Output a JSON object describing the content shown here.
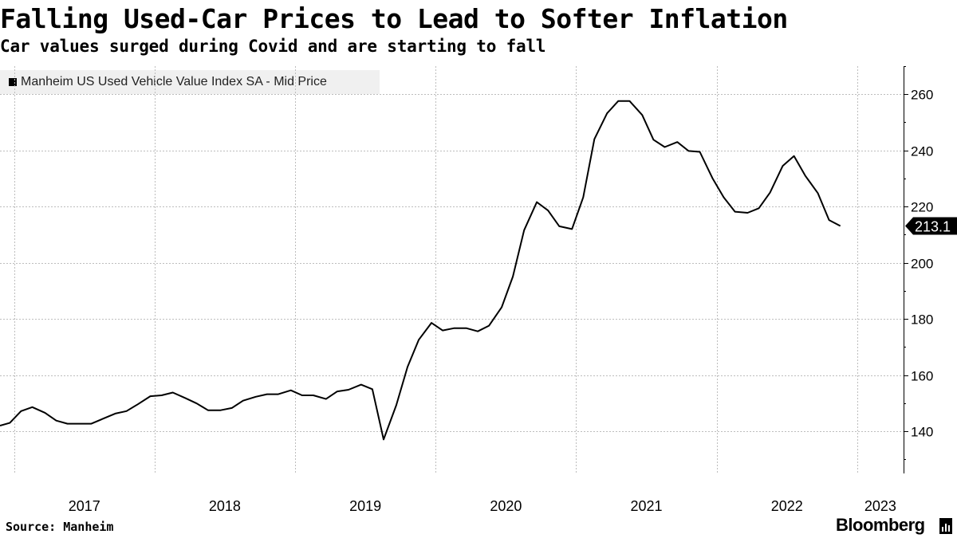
{
  "header": {
    "title": "Falling Used-Car Prices to Lead to Softer Inflation",
    "subtitle": "Car values surged during Covid and are starting to fall"
  },
  "legend": {
    "label": "Manheim US Used Vehicle Value Index SA - Mid Price",
    "color": "#000000"
  },
  "footer": {
    "source": "Source: Manheim",
    "brand": "Bloomberg",
    "brand_mark": "bloomberg-terminal-icon"
  },
  "chart_data": {
    "type": "line",
    "title": "Falling Used-Car Prices to Lead to Softer Inflation",
    "subtitle": "Car values surged during Covid and are starting to fall",
    "xlabel": "",
    "ylabel": "",
    "ylim": [
      125,
      270
    ],
    "yticks": [
      140,
      160,
      180,
      200,
      220,
      240,
      260
    ],
    "xlim": [
      2016.9,
      2023.33
    ],
    "x_tick_labels": [
      "2017",
      "2018",
      "2019",
      "2020",
      "2021",
      "2022",
      "2023"
    ],
    "grid": true,
    "legend_position": "top-left",
    "last_value_label": "213.1",
    "series": [
      {
        "name": "Manheim US Used Vehicle Value Index SA - Mid Price",
        "color": "#000000",
        "values": [
          [
            2016.9,
            142.0
          ],
          [
            2016.97,
            143.0
          ],
          [
            2017.05,
            147.2
          ],
          [
            2017.13,
            148.6
          ],
          [
            2017.22,
            146.6
          ],
          [
            2017.3,
            143.8
          ],
          [
            2017.38,
            142.7
          ],
          [
            2017.47,
            142.7
          ],
          [
            2017.55,
            142.7
          ],
          [
            2017.63,
            144.4
          ],
          [
            2017.72,
            146.3
          ],
          [
            2017.8,
            147.2
          ],
          [
            2017.88,
            149.6
          ],
          [
            2017.97,
            152.5
          ],
          [
            2018.05,
            152.8
          ],
          [
            2018.13,
            153.8
          ],
          [
            2018.22,
            151.8
          ],
          [
            2018.3,
            149.9
          ],
          [
            2018.38,
            147.5
          ],
          [
            2018.47,
            147.5
          ],
          [
            2018.55,
            148.3
          ],
          [
            2018.63,
            150.9
          ],
          [
            2018.72,
            152.3
          ],
          [
            2018.8,
            153.2
          ],
          [
            2018.88,
            153.2
          ],
          [
            2018.97,
            154.6
          ],
          [
            2019.05,
            152.8
          ],
          [
            2019.13,
            152.8
          ],
          [
            2019.22,
            151.5
          ],
          [
            2019.3,
            154.2
          ],
          [
            2019.38,
            154.8
          ],
          [
            2019.47,
            156.6
          ],
          [
            2019.55,
            155.0
          ],
          [
            2019.63,
            137.1
          ],
          [
            2019.72,
            149.3
          ],
          [
            2019.8,
            162.9
          ],
          [
            2019.88,
            172.6
          ],
          [
            2019.97,
            178.6
          ],
          [
            2020.05,
            175.9
          ],
          [
            2020.13,
            176.7
          ],
          [
            2020.22,
            176.7
          ],
          [
            2020.3,
            175.6
          ],
          [
            2020.38,
            177.6
          ],
          [
            2020.47,
            184.2
          ],
          [
            2020.55,
            195.1
          ],
          [
            2020.63,
            211.6
          ],
          [
            2020.72,
            221.6
          ],
          [
            2020.8,
            218.6
          ],
          [
            2020.88,
            213.0
          ],
          [
            2020.97,
            212.0
          ],
          [
            2021.05,
            223.3
          ],
          [
            2021.13,
            244.0
          ],
          [
            2021.22,
            253.2
          ],
          [
            2021.3,
            257.6
          ],
          [
            2021.38,
            257.6
          ],
          [
            2021.47,
            252.6
          ],
          [
            2021.55,
            243.8
          ],
          [
            2021.63,
            241.2
          ],
          [
            2021.72,
            243.0
          ],
          [
            2021.8,
            239.8
          ],
          [
            2021.88,
            239.5
          ],
          [
            2021.97,
            230.1
          ],
          [
            2022.05,
            223.3
          ],
          [
            2022.13,
            218.2
          ],
          [
            2022.22,
            217.8
          ],
          [
            2022.3,
            219.4
          ],
          [
            2022.38,
            225.0
          ],
          [
            2022.47,
            234.5
          ],
          [
            2022.55,
            238.0
          ],
          [
            2022.63,
            231.0
          ],
          [
            2022.72,
            224.8
          ],
          [
            2022.8,
            215.2
          ],
          [
            2022.88,
            213.1
          ]
        ]
      }
    ]
  }
}
